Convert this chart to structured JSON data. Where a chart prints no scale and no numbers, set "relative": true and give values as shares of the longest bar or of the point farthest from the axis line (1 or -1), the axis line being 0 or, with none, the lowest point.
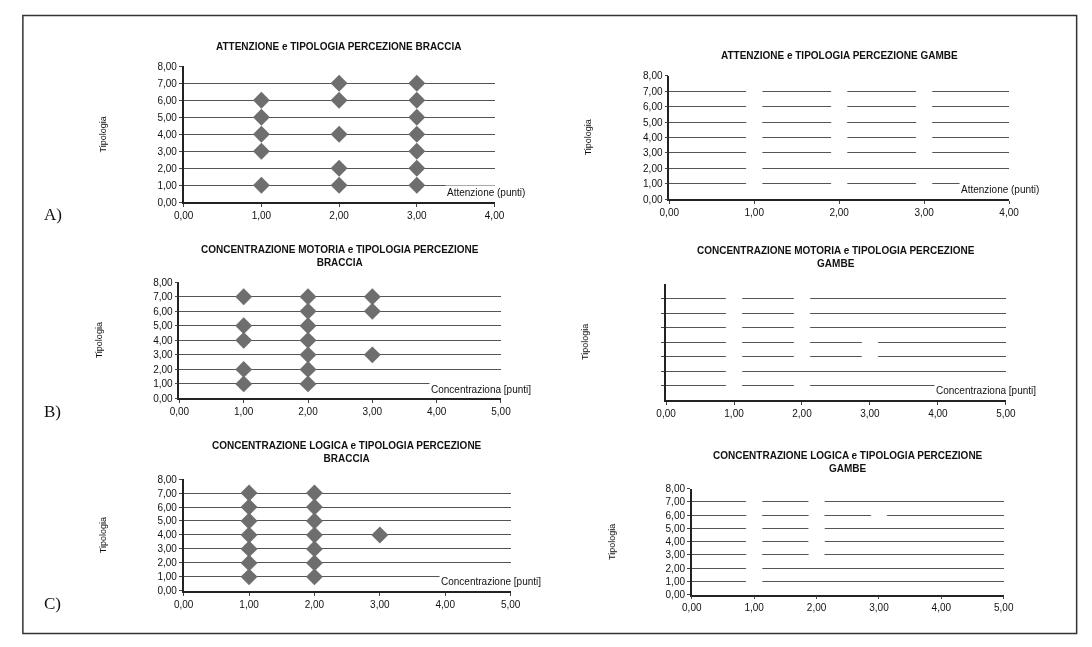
{
  "chart_data": [
    {
      "type": "scatter",
      "title": "ATTENZIONE e TIPOLOGIA PERCEZIONE BRACCIA",
      "xlabel": "Attenzione (punti)",
      "ylabel": "Tipologia",
      "annotations": [
        "A)"
      ],
      "marker": "diamond",
      "grid": "y",
      "xlim": [
        0,
        4
      ],
      "ylim": [
        0,
        8
      ],
      "xticks": [
        {
          "value": 0,
          "label": "0,00"
        },
        {
          "value": 1,
          "label": "1,00"
        },
        {
          "value": 2,
          "label": "2,00"
        },
        {
          "value": 3,
          "label": "3,00"
        },
        {
          "value": 4,
          "label": "4,00"
        }
      ],
      "yticks": [
        {
          "value": 0,
          "label": "0,00"
        },
        {
          "value": 1,
          "label": "1,00"
        },
        {
          "value": 2,
          "label": "2,00"
        },
        {
          "value": 3,
          "label": "3,00"
        },
        {
          "value": 4,
          "label": "4,00"
        },
        {
          "value": 5,
          "label": "5,00"
        },
        {
          "value": 6,
          "label": "6,00"
        },
        {
          "value": 7,
          "label": "7,00"
        },
        {
          "value": 8,
          "label": "8,00"
        }
      ],
      "series": [
        {
          "color": "#6e6e6e",
          "x": [
            1,
            1,
            1,
            1,
            1,
            2,
            2,
            2,
            2,
            2,
            3,
            3,
            3,
            3,
            3,
            3,
            3
          ],
          "values": [
            1,
            3,
            4,
            5,
            6,
            1,
            2,
            4,
            6,
            7,
            1,
            2,
            3,
            4,
            5,
            6,
            7
          ]
        }
      ]
    },
    {
      "type": "scatter",
      "title": "ATTENZIONE e TIPOLOGIA PERCEZIONE GAMBE",
      "xlabel": "Attenzione (punti)",
      "ylabel": "Tipologia",
      "marker": "diamond",
      "grid": "y",
      "xlim": [
        0,
        4
      ],
      "ylim": [
        0,
        8
      ],
      "xticks": [
        {
          "value": 0,
          "label": "0,00"
        },
        {
          "value": 1,
          "label": "1,00"
        },
        {
          "value": 2,
          "label": "2,00"
        },
        {
          "value": 3,
          "label": "3,00"
        },
        {
          "value": 4,
          "label": "4,00"
        }
      ],
      "yticks": [
        {
          "value": 0,
          "label": "0,00"
        },
        {
          "value": 1,
          "label": "1,00"
        },
        {
          "value": 2,
          "label": "2,00"
        },
        {
          "value": 3,
          "label": "3,00"
        },
        {
          "value": 4,
          "label": "4,00"
        },
        {
          "value": 5,
          "label": "5,00"
        },
        {
          "value": 6,
          "label": "6,00"
        },
        {
          "value": 7,
          "label": "7,00"
        },
        {
          "value": 8,
          "label": "8,00"
        }
      ],
      "series": [
        {
          "color": "#ffffff",
          "x": [
            1,
            1,
            1,
            1,
            1,
            1,
            1,
            2,
            2,
            2,
            2,
            2,
            2,
            3,
            3,
            3,
            3,
            3,
            3
          ],
          "values": [
            1,
            2,
            3,
            4,
            5,
            6,
            7,
            1,
            3,
            4,
            5,
            6,
            7,
            1,
            3,
            4,
            5,
            6,
            7
          ]
        }
      ]
    },
    {
      "type": "scatter",
      "title": "CONCENTRAZIONE MOTORIA e TIPOLOGIA PERCEZIONE BRACCIA",
      "xlabel": "Concentraziona [punti]",
      "ylabel": "Tipologia",
      "annotations": [
        "B)"
      ],
      "marker": "diamond",
      "grid": "y",
      "xlim": [
        0,
        5
      ],
      "ylim": [
        0,
        8
      ],
      "xticks": [
        {
          "value": 0,
          "label": "0,00"
        },
        {
          "value": 1,
          "label": "1,00"
        },
        {
          "value": 2,
          "label": "2,00"
        },
        {
          "value": 3,
          "label": "3,00"
        },
        {
          "value": 4,
          "label": "4,00"
        },
        {
          "value": 5,
          "label": "5,00"
        }
      ],
      "yticks": [
        {
          "value": 0,
          "label": "0,00"
        },
        {
          "value": 1,
          "label": "1,00"
        },
        {
          "value": 2,
          "label": "2,00"
        },
        {
          "value": 3,
          "label": "3,00"
        },
        {
          "value": 4,
          "label": "4,00"
        },
        {
          "value": 5,
          "label": "5,00"
        },
        {
          "value": 6,
          "label": "6,00"
        },
        {
          "value": 7,
          "label": "7,00"
        },
        {
          "value": 8,
          "label": "8,00"
        }
      ],
      "series": [
        {
          "color": "#6e6e6e",
          "x": [
            1,
            1,
            1,
            1,
            1,
            2,
            2,
            2,
            2,
            2,
            2,
            2,
            3,
            3,
            3
          ],
          "values": [
            1,
            2,
            4,
            5,
            7,
            1,
            2,
            3,
            4,
            5,
            6,
            7,
            3,
            6,
            7
          ]
        }
      ]
    },
    {
      "type": "scatter",
      "title": "CONCENTRAZIONE MOTORIA e TIPOLOGIA PERCEZIONE GAMBE",
      "xlabel": "Concentraziona [punti]",
      "ylabel": "Tipologia",
      "marker": "diamond",
      "grid": "y",
      "relative": true,
      "xlim": [
        0,
        5
      ],
      "xticks": [
        {
          "value": 0,
          "label": "0,00"
        },
        {
          "value": 1,
          "label": "1,00"
        },
        {
          "value": 2,
          "label": "2,00"
        },
        {
          "value": 3,
          "label": "3,00"
        },
        {
          "value": 4,
          "label": "4,00"
        },
        {
          "value": 5,
          "label": "5,00"
        }
      ],
      "series": [
        {
          "color": "#ffffff",
          "x": [
            1,
            1,
            1,
            1,
            1,
            1,
            1,
            2,
            2,
            2,
            2,
            2,
            2,
            3,
            3
          ],
          "values": [
            0.143,
            0.286,
            0.429,
            0.571,
            0.714,
            0.857,
            1,
            0.143,
            0.429,
            0.571,
            0.714,
            0.857,
            1,
            0.429,
            0.571
          ]
        }
      ]
    },
    {
      "type": "scatter",
      "title": "CONCENTRAZIONE LOGICA e TIPOLOGIA PERCEZIONE BRACCIA",
      "xlabel": "Concentrazione [punti]",
      "ylabel": "Tipologia",
      "annotations": [
        "C)"
      ],
      "marker": "diamond",
      "grid": "y",
      "xlim": [
        0,
        5
      ],
      "ylim": [
        0,
        8
      ],
      "xticks": [
        {
          "value": 0,
          "label": "0,00"
        },
        {
          "value": 1,
          "label": "1,00"
        },
        {
          "value": 2,
          "label": "2,00"
        },
        {
          "value": 3,
          "label": "3,00"
        },
        {
          "value": 4,
          "label": "4,00"
        },
        {
          "value": 5,
          "label": "5,00"
        }
      ],
      "yticks": [
        {
          "value": 0,
          "label": "0,00"
        },
        {
          "value": 1,
          "label": "1,00"
        },
        {
          "value": 2,
          "label": "2,00"
        },
        {
          "value": 3,
          "label": "3,00"
        },
        {
          "value": 4,
          "label": "4,00"
        },
        {
          "value": 5,
          "label": "5,00"
        },
        {
          "value": 6,
          "label": "6,00"
        },
        {
          "value": 7,
          "label": "7,00"
        },
        {
          "value": 8,
          "label": "8,00"
        }
      ],
      "series": [
        {
          "color": "#6e6e6e",
          "x": [
            1,
            1,
            1,
            1,
            1,
            1,
            1,
            2,
            2,
            2,
            2,
            2,
            2,
            2,
            3
          ],
          "values": [
            1,
            2,
            3,
            4,
            5,
            6,
            7,
            1,
            2,
            3,
            4,
            5,
            6,
            7,
            4
          ]
        }
      ]
    },
    {
      "type": "scatter",
      "title": "CONCENTRAZIONE LOGICA e TIPOLOGIA PERCEZIONE GAMBE",
      "ylabel": "Tipologia",
      "marker": "diamond",
      "grid": "y",
      "xlim": [
        0,
        5
      ],
      "ylim": [
        0,
        8
      ],
      "xticks": [
        {
          "value": 0,
          "label": "0,00"
        },
        {
          "value": 1,
          "label": "1,00"
        },
        {
          "value": 2,
          "label": "2,00"
        },
        {
          "value": 3,
          "label": "3,00"
        },
        {
          "value": 4,
          "label": "4,00"
        },
        {
          "value": 5,
          "label": "5,00"
        }
      ],
      "yticks": [
        {
          "value": 0,
          "label": "0,00"
        },
        {
          "value": 1,
          "label": "1,00"
        },
        {
          "value": 2,
          "label": "2,00"
        },
        {
          "value": 3,
          "label": "3,00"
        },
        {
          "value": 4,
          "label": "4,00"
        },
        {
          "value": 5,
          "label": "5,00"
        },
        {
          "value": 6,
          "label": "6,00"
        },
        {
          "value": 7,
          "label": "7,00"
        },
        {
          "value": 8,
          "label": "8,00"
        }
      ],
      "series": [
        {
          "color": "#ffffff",
          "x": [
            1,
            1,
            1,
            1,
            1,
            1,
            1,
            2,
            2,
            2,
            2,
            2,
            3
          ],
          "values": [
            1,
            2,
            3,
            4,
            5,
            6,
            7,
            3,
            4,
            5,
            6,
            7,
            6
          ]
        }
      ]
    }
  ]
}
